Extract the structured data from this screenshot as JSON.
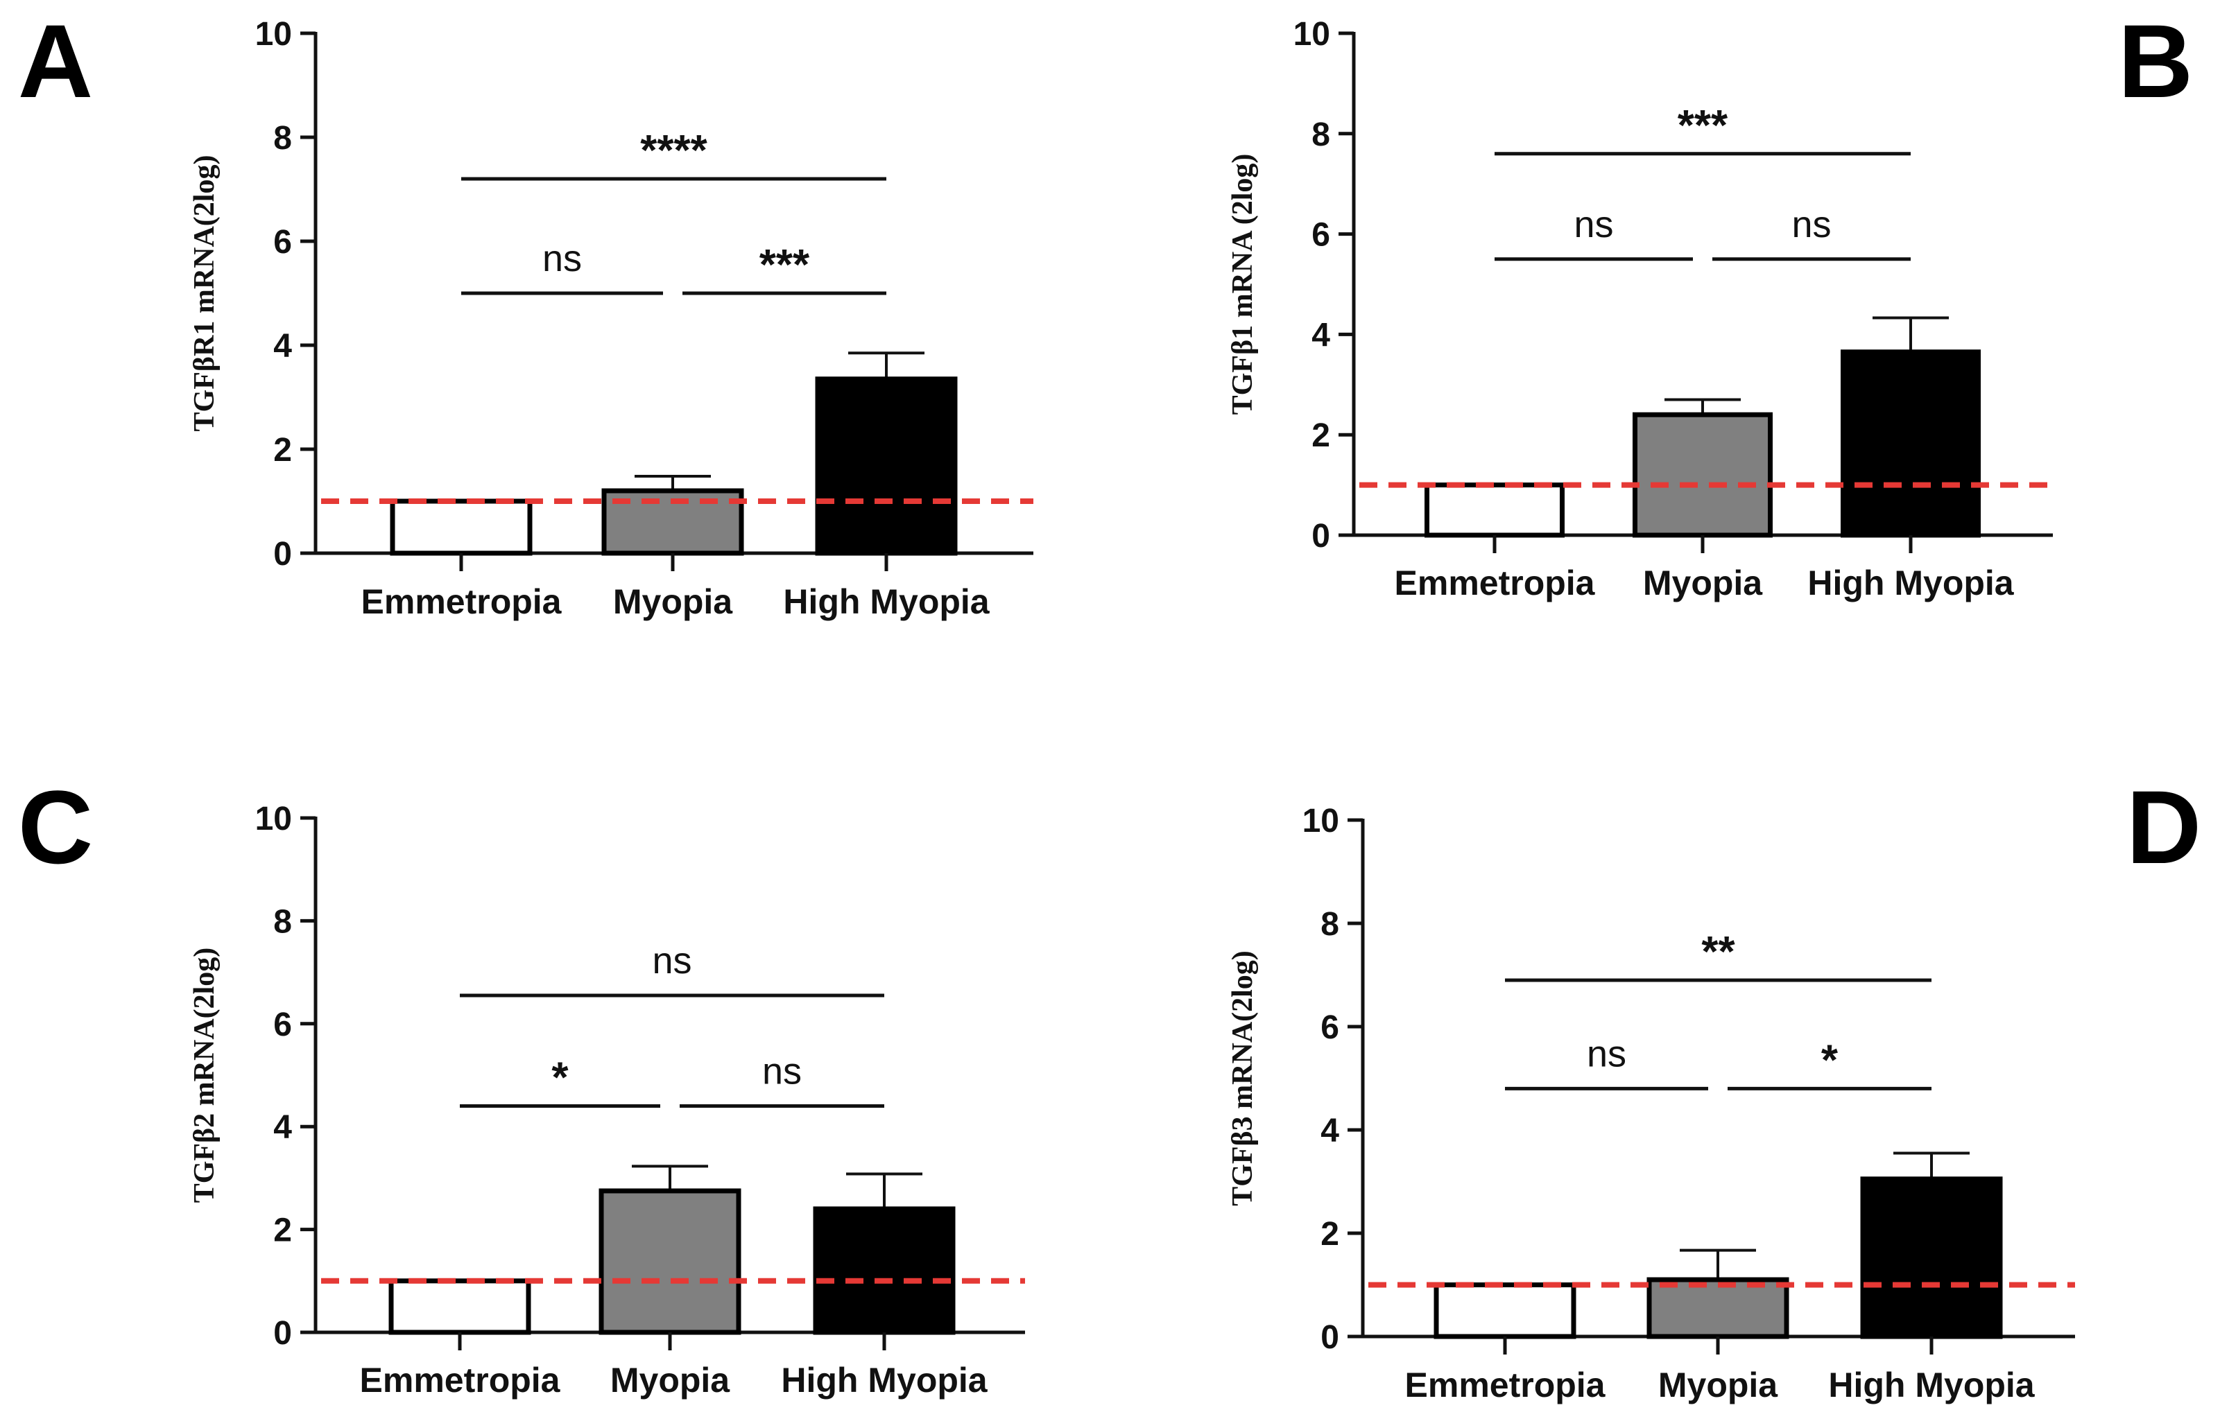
{
  "chart_data": [
    {
      "panel": "A",
      "type": "bar",
      "categories": [
        "Emmetropia",
        "Myopia",
        "High Myopia"
      ],
      "values": [
        1.0,
        1.2,
        3.35
      ],
      "errors": [
        0.0,
        0.28,
        0.5
      ],
      "ylabel": "TGFβR1 mRNA(2log)",
      "ylim": [
        0,
        10
      ],
      "yticks": [
        "0",
        "2",
        "4",
        "6",
        "8",
        "10"
      ],
      "reference_line": 1,
      "comparisons": [
        {
          "from": 0,
          "to": 1,
          "level": 5.0,
          "label": "ns"
        },
        {
          "from": 1,
          "to": 2,
          "level": 5.0,
          "label": "***"
        },
        {
          "from": 0,
          "to": 2,
          "level": 7.2,
          "label": "****"
        }
      ]
    },
    {
      "panel": "B",
      "type": "bar",
      "categories": [
        "Emmetropia",
        "Myopia",
        "High Myopia"
      ],
      "values": [
        1.0,
        2.4,
        3.65
      ],
      "errors": [
        0.0,
        0.3,
        0.68
      ],
      "ylabel": "TGFβ1 mRNA (2log)",
      "ylim": [
        0,
        10
      ],
      "yticks": [
        "0",
        "2",
        "4",
        "6",
        "8",
        "10"
      ],
      "reference_line": 1,
      "comparisons": [
        {
          "from": 0,
          "to": 1,
          "level": 5.5,
          "label": "ns"
        },
        {
          "from": 1,
          "to": 2,
          "level": 5.5,
          "label": "ns"
        },
        {
          "from": 0,
          "to": 2,
          "level": 7.6,
          "label": "***"
        }
      ]
    },
    {
      "panel": "C",
      "type": "bar",
      "categories": [
        "Emmetropia",
        "Myopia",
        "High Myopia"
      ],
      "values": [
        1.0,
        2.75,
        2.4
      ],
      "errors": [
        0.0,
        0.48,
        0.68
      ],
      "ylabel": "TGFβ2 mRNA(2log)",
      "ylim": [
        0,
        10
      ],
      "yticks": [
        "0",
        "2",
        "4",
        "6",
        "8",
        "10"
      ],
      "reference_line": 1,
      "comparisons": [
        {
          "from": 0,
          "to": 1,
          "level": 4.4,
          "label": "*"
        },
        {
          "from": 1,
          "to": 2,
          "level": 4.4,
          "label": "ns"
        },
        {
          "from": 0,
          "to": 2,
          "level": 6.55,
          "label": "ns"
        }
      ]
    },
    {
      "panel": "D",
      "type": "bar",
      "categories": [
        "Emmetropia",
        "Myopia",
        "High Myopia"
      ],
      "values": [
        1.0,
        1.1,
        3.05
      ],
      "errors": [
        0.0,
        0.57,
        0.5
      ],
      "ylabel": "TGFβ3 mRNA(2log)",
      "ylim": [
        0,
        10
      ],
      "yticks": [
        "0",
        "2",
        "4",
        "6",
        "8",
        "10"
      ],
      "reference_line": 1,
      "comparisons": [
        {
          "from": 0,
          "to": 1,
          "level": 4.8,
          "label": "ns"
        },
        {
          "from": 1,
          "to": 2,
          "level": 4.8,
          "label": "*"
        },
        {
          "from": 0,
          "to": 2,
          "level": 6.9,
          "label": "**"
        }
      ]
    }
  ],
  "colors": {
    "bars": [
      "#ffffff",
      "#808080",
      "#000000"
    ],
    "bar_outline": "#000000",
    "reference_line": "#e53935",
    "axis": "#111111"
  }
}
